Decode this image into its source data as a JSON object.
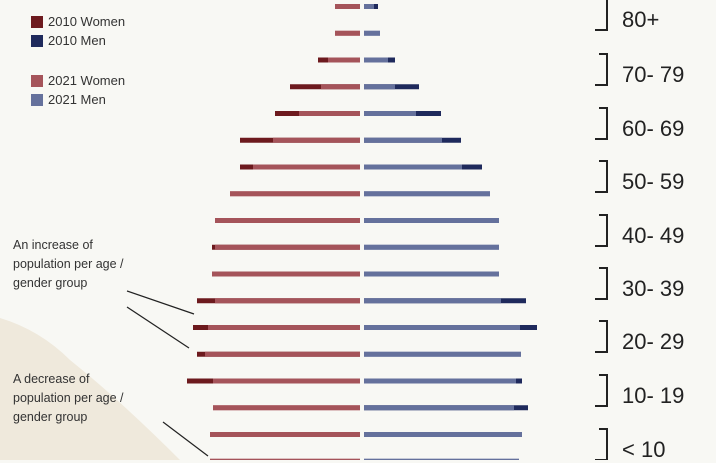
{
  "colors": {
    "women_2010": "#6d1a1e",
    "men_2010": "#1f2a5c",
    "women_2021": "#a5545a",
    "men_2021": "#65719c",
    "women_increase": "#cf9597",
    "men_increase": "#9aa2c0",
    "background": "#f8f8f4",
    "background_shape": "#efe9dc"
  },
  "legend": [
    {
      "label": "2010 Women",
      "color_key": "women_2010"
    },
    {
      "label": "2010 Men",
      "color_key": "men_2010"
    },
    {
      "label": "2021 Women",
      "color_key": "women_2021"
    },
    {
      "label": "2021 Men",
      "color_key": "men_2021"
    }
  ],
  "annotations": {
    "increase": [
      "An increase of",
      "population per age /",
      "gender group"
    ],
    "decrease": [
      "A decrease of",
      "population per age /",
      "gender group"
    ]
  },
  "chart_data": {
    "type": "bar",
    "orientation": "horizontal population pyramid",
    "x_unit": "relative bar length (no numeric axis shown)",
    "age_groups": [
      {
        "label": "80+"
      },
      {
        "label": "70- 79"
      },
      {
        "label": "60- 69"
      },
      {
        "label": "50- 59"
      },
      {
        "label": "40- 49"
      },
      {
        "label": "30- 39"
      },
      {
        "label": "20- 29"
      },
      {
        "label": "10- 19"
      },
      {
        "label": "< 10"
      }
    ],
    "rows_top_to_bottom": [
      {
        "women_2021": 25,
        "women_2010": 25,
        "men_2021": 10,
        "men_2010": 14
      },
      {
        "women_2021": 25,
        "women_2010": 25,
        "men_2021": 16,
        "men_2010": 16
      },
      {
        "women_2021": 32,
        "women_2010": 42,
        "men_2021": 24,
        "men_2010": 31
      },
      {
        "women_2021": 39,
        "women_2010": 70,
        "men_2021": 31,
        "men_2010": 55
      },
      {
        "women_2021": 61,
        "women_2010": 85,
        "men_2021": 52,
        "men_2010": 77
      },
      {
        "women_2021": 87,
        "women_2010": 120,
        "men_2021": 78,
        "men_2010": 97
      },
      {
        "women_2021": 107,
        "women_2010": 120,
        "men_2021": 98,
        "men_2010": 118
      },
      {
        "women_2021": 130,
        "women_2010": 130,
        "men_2021": 126,
        "men_2010": 126
      },
      {
        "women_2021": 145,
        "women_2010": 145,
        "men_2021": 135,
        "men_2010": 135
      },
      {
        "women_2021": 145,
        "women_2010": 148,
        "men_2021": 135,
        "men_2010": 135
      },
      {
        "women_2021": 148,
        "women_2010": 148,
        "men_2021": 135,
        "men_2010": 135
      },
      {
        "women_2021": 145,
        "women_2010": 163,
        "men_2021": 137,
        "men_2010": 162
      },
      {
        "women_2021": 152,
        "women_2010": 167,
        "men_2021": 156,
        "men_2010": 173
      },
      {
        "women_2021": 155,
        "women_2010": 163,
        "men_2021": 157,
        "men_2010": 157
      },
      {
        "women_2021": 147,
        "women_2010": 173,
        "men_2021": 152,
        "men_2010": 158
      },
      {
        "women_2021": 147,
        "women_2010": 147,
        "men_2021": 150,
        "men_2010": 164
      },
      {
        "women_2021": 150,
        "women_2010": 150,
        "men_2021": 158,
        "men_2010": 158
      },
      {
        "women_2021": 150,
        "women_2010": 150,
        "men_2021": 155,
        "men_2010": 155
      }
    ]
  }
}
